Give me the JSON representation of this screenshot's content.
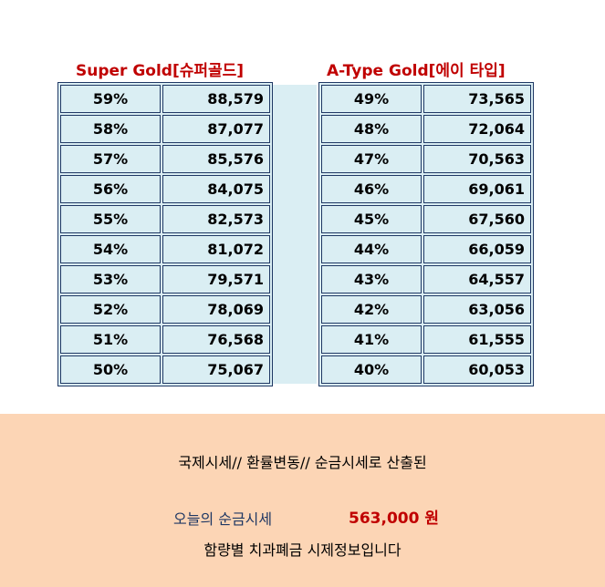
{
  "headers": {
    "left": "Super Gold[슈퍼골드]",
    "right": "A-Type Gold[에이 타입]"
  },
  "left_rows": [
    {
      "pct": "59%",
      "price": "88,579"
    },
    {
      "pct": "58%",
      "price": "87,077"
    },
    {
      "pct": "57%",
      "price": "85,576"
    },
    {
      "pct": "56%",
      "price": "84,075"
    },
    {
      "pct": "55%",
      "price": "82,573"
    },
    {
      "pct": "54%",
      "price": "81,072"
    },
    {
      "pct": "53%",
      "price": "79,571"
    },
    {
      "pct": "52%",
      "price": "78,069"
    },
    {
      "pct": "51%",
      "price": "76,568"
    },
    {
      "pct": "50%",
      "price": "75,067"
    }
  ],
  "right_rows": [
    {
      "pct": "49%",
      "price": "73,565"
    },
    {
      "pct": "48%",
      "price": "72,064"
    },
    {
      "pct": "47%",
      "price": "70,563"
    },
    {
      "pct": "46%",
      "price": "69,061"
    },
    {
      "pct": "45%",
      "price": "67,560"
    },
    {
      "pct": "44%",
      "price": "66,059"
    },
    {
      "pct": "43%",
      "price": "64,557"
    },
    {
      "pct": "42%",
      "price": "63,056"
    },
    {
      "pct": "41%",
      "price": "61,555"
    },
    {
      "pct": "40%",
      "price": "60,053"
    }
  ],
  "footer": {
    "line1": "국제시세// 환률변동// 순금시세로 산출된",
    "today_label": "오늘의 순금시세",
    "today_price": "563,000  원",
    "line3": "함량별 치과폐금 시제정보입니다"
  },
  "colors": {
    "header_red": "#c00000",
    "cell_bg": "#daeef3",
    "border_navy": "#1f3864",
    "footer_bg": "#fcd5b5"
  }
}
